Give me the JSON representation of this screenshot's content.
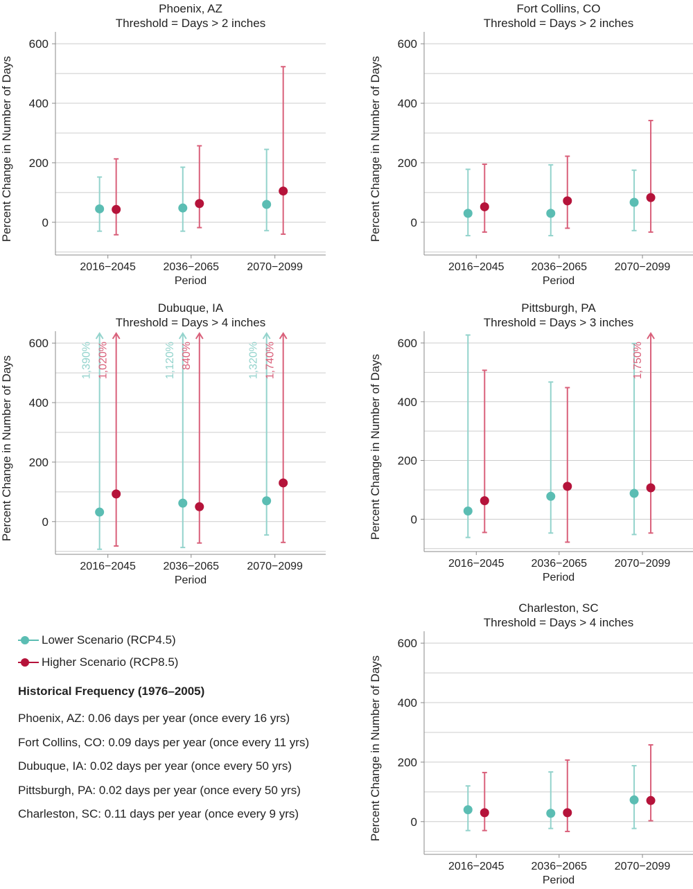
{
  "colors": {
    "lower": "#5bbdb3",
    "higher": "#b5133a",
    "lower_light": "#93d3cc",
    "higher_light": "#d9607a",
    "grid": "#cccccc",
    "axis": "#888888"
  },
  "legend": {
    "items": [
      {
        "label": "Lower Scenario (RCP4.5)",
        "color": "#5bbdb3"
      },
      {
        "label": "Higher Scenario (RCP8.5)",
        "color": "#b5133a"
      }
    ]
  },
  "historical": {
    "title": "Historical Frequency (1976–2005)",
    "items": [
      "Phoenix, AZ: 0.06 days per year (once every 16 yrs)",
      "Fort Collins, CO: 0.09 days per year (once every 11 yrs)",
      "Dubuque, IA: 0.02 days per year (once every 50 yrs)",
      "Pittsburgh, PA: 0.02 days per year (once every 50 yrs)",
      "Charleston, SC: 0.11 days per year (once every 9 yrs)"
    ]
  },
  "chart_data": [
    {
      "type": "scatter",
      "title": "Phoenix, AZ",
      "subtitle": "Threshold = Days > 2 inches",
      "ylabel": "Percent Change in Number of Days",
      "xlabel": "Period",
      "categories": [
        "2016−2045",
        "2036−2065",
        "2070−2099"
      ],
      "yticks": [
        0,
        200,
        400,
        600
      ],
      "ylim": [
        -110,
        640
      ],
      "series": [
        {
          "name": "Lower Scenario (RCP4.5)",
          "values": [
            45,
            48,
            60
          ],
          "low": [
            -30,
            -30,
            -28
          ],
          "high": [
            152,
            185,
            245
          ],
          "high_labels": [
            "",
            "",
            ""
          ]
        },
        {
          "name": "Higher Scenario (RCP8.5)",
          "values": [
            43,
            63,
            105
          ],
          "low": [
            -42,
            -18,
            -40
          ],
          "high": [
            213,
            257,
            523
          ],
          "high_labels": [
            "",
            "",
            ""
          ]
        }
      ]
    },
    {
      "type": "scatter",
      "title": "Fort Collins, CO",
      "subtitle": "Threshold = Days > 2 inches",
      "ylabel": "Percent Change in Number of Days",
      "xlabel": "Period",
      "categories": [
        "2016−2045",
        "2036−2065",
        "2070−2099"
      ],
      "yticks": [
        0,
        200,
        400,
        600
      ],
      "ylim": [
        -110,
        640
      ],
      "series": [
        {
          "name": "Lower Scenario (RCP4.5)",
          "values": [
            30,
            30,
            67
          ],
          "low": [
            -45,
            -45,
            -28
          ],
          "high": [
            178,
            193,
            175
          ],
          "high_labels": [
            "",
            "",
            ""
          ]
        },
        {
          "name": "Higher Scenario (RCP8.5)",
          "values": [
            52,
            72,
            83
          ],
          "low": [
            -33,
            -20,
            -33
          ],
          "high": [
            195,
            222,
            342
          ],
          "high_labels": [
            "",
            "",
            ""
          ]
        }
      ]
    },
    {
      "type": "scatter",
      "title": "Dubuque, IA",
      "subtitle": "Threshold = Days > 4 inches",
      "ylabel": "Percent Change in Number of Days",
      "xlabel": "Period",
      "categories": [
        "2016−2045",
        "2036−2065",
        "2070−2099"
      ],
      "yticks": [
        0,
        200,
        400,
        600
      ],
      "ylim": [
        -110,
        640
      ],
      "series": [
        {
          "name": "Lower Scenario (RCP4.5)",
          "values": [
            32,
            62,
            70
          ],
          "low": [
            -93,
            -87,
            -45
          ],
          "high": [
            1390,
            1120,
            1320
          ],
          "high_labels": [
            "1,390%",
            "1,120%",
            "1,320%"
          ]
        },
        {
          "name": "Higher Scenario (RCP8.5)",
          "values": [
            93,
            50,
            130
          ],
          "low": [
            -82,
            -72,
            -70
          ],
          "high": [
            1020,
            840,
            1740
          ],
          "high_labels": [
            "1,020%",
            "840%",
            "1,740%"
          ]
        }
      ]
    },
    {
      "type": "scatter",
      "title": "Pittsburgh, PA",
      "subtitle": "Threshold = Days > 3 inches",
      "ylabel": "Percent Change in Number of Days",
      "xlabel": "Period",
      "categories": [
        "2016−2045",
        "2036−2065",
        "2070−2099"
      ],
      "yticks": [
        0,
        200,
        400,
        600
      ],
      "ylim": [
        -110,
        640
      ],
      "series": [
        {
          "name": "Lower Scenario (RCP4.5)",
          "values": [
            28,
            78,
            88
          ],
          "low": [
            -62,
            -47,
            -52
          ],
          "high": [
            627,
            467,
            598
          ],
          "high_labels": [
            "",
            "",
            ""
          ]
        },
        {
          "name": "Higher Scenario (RCP8.5)",
          "values": [
            63,
            112,
            107
          ],
          "low": [
            -45,
            -78,
            -47
          ],
          "high": [
            507,
            448,
            1750
          ],
          "high_labels": [
            "",
            "",
            "1,750%"
          ]
        }
      ]
    },
    {
      "type": "scatter",
      "title": "Charleston, SC",
      "subtitle": "Threshold = Days > 4 inches",
      "ylabel": "Percent Change in Number of Days",
      "xlabel": "Period",
      "categories": [
        "2016−2045",
        "2036−2065",
        "2070−2099"
      ],
      "yticks": [
        0,
        200,
        400,
        600
      ],
      "ylim": [
        -110,
        640
      ],
      "series": [
        {
          "name": "Lower Scenario (RCP4.5)",
          "values": [
            40,
            28,
            73
          ],
          "low": [
            -30,
            -23,
            -23
          ],
          "high": [
            120,
            167,
            188
          ],
          "high_labels": [
            "",
            "",
            ""
          ]
        },
        {
          "name": "Higher Scenario (RCP8.5)",
          "values": [
            30,
            30,
            71
          ],
          "low": [
            -30,
            -33,
            3
          ],
          "high": [
            165,
            207,
            258
          ],
          "high_labels": [
            "",
            "",
            ""
          ]
        }
      ]
    }
  ]
}
